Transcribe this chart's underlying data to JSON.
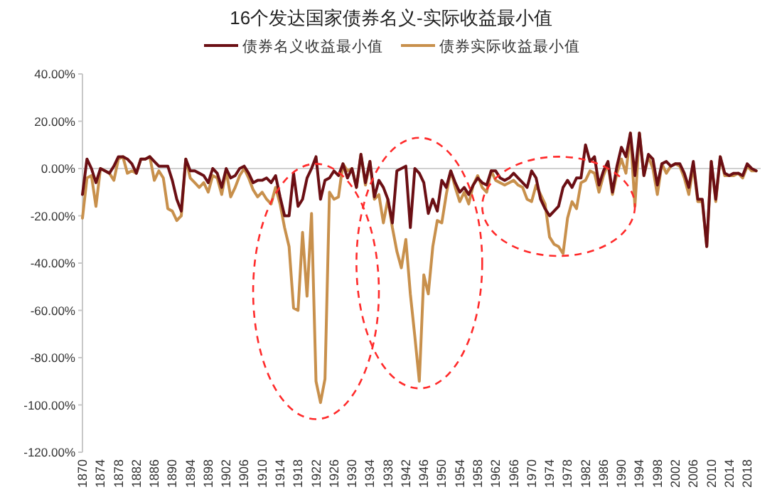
{
  "chart_data": {
    "type": "line",
    "title": "16个发达国家债券名义-实际收益最小值",
    "x": [
      1870,
      1871,
      1872,
      1873,
      1874,
      1875,
      1876,
      1877,
      1878,
      1879,
      1880,
      1881,
      1882,
      1883,
      1884,
      1885,
      1886,
      1887,
      1888,
      1889,
      1890,
      1891,
      1892,
      1893,
      1894,
      1895,
      1896,
      1897,
      1898,
      1899,
      1900,
      1901,
      1902,
      1903,
      1904,
      1905,
      1906,
      1907,
      1908,
      1909,
      1910,
      1911,
      1912,
      1913,
      1914,
      1915,
      1916,
      1917,
      1918,
      1919,
      1920,
      1921,
      1922,
      1923,
      1924,
      1925,
      1926,
      1927,
      1928,
      1929,
      1930,
      1931,
      1932,
      1933,
      1934,
      1935,
      1936,
      1937,
      1938,
      1939,
      1940,
      1941,
      1942,
      1943,
      1944,
      1945,
      1946,
      1947,
      1948,
      1949,
      1950,
      1951,
      1952,
      1953,
      1954,
      1955,
      1956,
      1957,
      1958,
      1959,
      1960,
      1961,
      1962,
      1963,
      1964,
      1965,
      1966,
      1967,
      1968,
      1969,
      1970,
      1971,
      1972,
      1973,
      1974,
      1975,
      1976,
      1977,
      1978,
      1979,
      1980,
      1981,
      1982,
      1983,
      1984,
      1985,
      1986,
      1987,
      1988,
      1989,
      1990,
      1991,
      1992,
      1993,
      1994,
      1995,
      1996,
      1997,
      1998,
      1999,
      2000,
      2001,
      2002,
      2003,
      2004,
      2005,
      2006,
      2007,
      2008,
      2009,
      2010,
      2011,
      2012,
      2013,
      2014,
      2015,
      2016,
      2017,
      2018,
      2019,
      2020
    ],
    "series": [
      {
        "name": "债券名义收益最小值",
        "color": "#6b0f14",
        "values": [
          -11,
          4,
          0,
          -6,
          0,
          -1,
          -2,
          1,
          5,
          5,
          4,
          2,
          -2,
          4,
          4,
          5,
          3,
          1,
          1,
          1,
          -5,
          -13,
          -18,
          4,
          -1,
          -1,
          -2,
          -3,
          -6,
          0,
          -2,
          -8,
          0,
          -4,
          -3,
          0,
          1,
          -2,
          -6,
          -5,
          -5,
          -4,
          -6,
          -3,
          -12,
          -20,
          -20,
          -2,
          -16,
          -13,
          -4,
          0,
          5,
          -13,
          -5,
          -4,
          -1,
          -3,
          2,
          -4,
          0,
          -8,
          6,
          -6,
          3,
          -12,
          -5,
          -8,
          -13,
          -23,
          -1,
          0,
          1,
          -25,
          0,
          -2,
          -6,
          -19,
          -13,
          -18,
          -5,
          -8,
          -1,
          -6,
          -10,
          -8,
          -11,
          -7,
          -4,
          -6,
          -7,
          -1,
          -1,
          -4,
          -5,
          -4,
          -2,
          -4,
          -6,
          -8,
          -1,
          -4,
          -13,
          -17,
          -20,
          -18,
          -16,
          -8,
          -5,
          -8,
          -4,
          -4,
          10,
          3,
          5,
          -7,
          -1,
          3,
          -10,
          1,
          9,
          5,
          15,
          -3,
          15,
          -3,
          6,
          4,
          -7,
          2,
          3,
          1,
          2,
          2,
          -2,
          -8,
          3,
          -13,
          -13,
          -33,
          3,
          -13,
          5,
          -2,
          -3,
          -2,
          -2,
          -3,
          2,
          0,
          -1
        ]
      },
      {
        "name": "债券实际收益最小值",
        "color": "#c8904c",
        "values": [
          -21,
          -4,
          -3,
          -16,
          0,
          -1,
          -2,
          -5,
          4,
          5,
          -2,
          -1,
          -2,
          4,
          4,
          5,
          -5,
          -1,
          -4,
          -17,
          -18,
          -22,
          -20,
          4,
          -4,
          -6,
          -8,
          -6,
          -10,
          -3,
          -4,
          -11,
          -1,
          -12,
          -8,
          -3,
          0,
          -4,
          -9,
          -12,
          -10,
          -13,
          -15,
          -8,
          -15,
          -25,
          -33,
          -59,
          -60,
          -27,
          -54,
          -19,
          -90,
          -99,
          -89,
          -10,
          -13,
          -12,
          2,
          -1,
          0,
          -8,
          6,
          -7,
          3,
          -13,
          -11,
          -23,
          -13,
          -25,
          -35,
          -42,
          -30,
          -53,
          -71,
          -90,
          -45,
          -53,
          -33,
          -22,
          -23,
          -11,
          -1,
          -8,
          -14,
          -10,
          -15,
          -7,
          -3,
          -8,
          -10,
          -1,
          -5,
          -6,
          -7,
          -6,
          -5,
          -7,
          -8,
          -13,
          -14,
          -7,
          -11,
          -15,
          -29,
          -32,
          -33,
          -36,
          -21,
          -14,
          -17,
          -6,
          -5,
          -1,
          -2,
          -10,
          -3,
          2,
          -11,
          -2,
          4,
          -2,
          15,
          -16,
          15,
          -3,
          5,
          0,
          -11,
          2,
          -2,
          1,
          2,
          1,
          -4,
          -11,
          1,
          -14,
          -14,
          -33,
          3,
          -14,
          5,
          -3,
          -3,
          -3,
          -2,
          -4,
          1,
          -1,
          -1
        ]
      }
    ],
    "xlim": [
      1870,
      2021
    ],
    "xticks": [
      1870,
      1874,
      1878,
      1882,
      1886,
      1890,
      1894,
      1898,
      1902,
      1906,
      1910,
      1914,
      1918,
      1922,
      1926,
      1930,
      1934,
      1938,
      1942,
      1946,
      1950,
      1954,
      1958,
      1962,
      1966,
      1970,
      1974,
      1978,
      1982,
      1986,
      1990,
      1994,
      1998,
      2002,
      2006,
      2010,
      2014,
      2018
    ],
    "ylim": [
      -120,
      40
    ],
    "yticks": [
      {
        "value": 40,
        "label": "40.00%"
      },
      {
        "value": 20,
        "label": "20.00%"
      },
      {
        "value": 0,
        "label": "0.00%"
      },
      {
        "value": -20,
        "label": "-20.00%"
      },
      {
        "value": -40,
        "label": "-40.00%"
      },
      {
        "value": -60,
        "label": "-60.00%"
      },
      {
        "value": -80,
        "label": "-80.00%"
      },
      {
        "value": -100,
        "label": "-100.00%"
      },
      {
        "value": -120,
        "label": "-120.00%"
      }
    ],
    "legend": "top",
    "marker": "none",
    "line_style": "solid"
  }
}
